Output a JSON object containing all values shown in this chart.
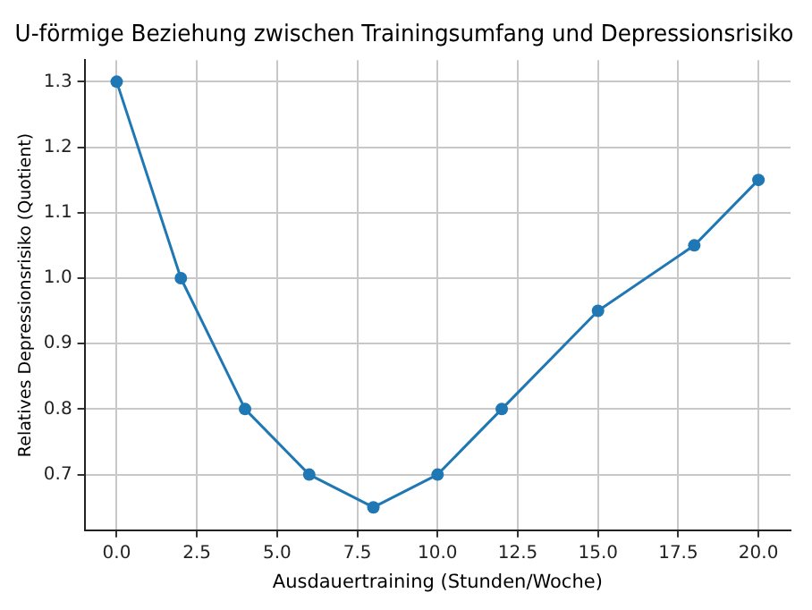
{
  "chart_data": {
    "type": "line",
    "title": "U-förmige Beziehung zwischen Trainingsumfang und Depressionsrisiko",
    "xlabel": "Ausdauertraining (Stunden/Woche)",
    "ylabel": "Relatives Depressionsrisiko (Quotient)",
    "x": [
      0,
      2,
      4,
      6,
      8,
      10,
      12,
      15,
      18,
      20
    ],
    "series": [
      {
        "color": "#1f77b4",
        "values": [
          1.3,
          1.0,
          0.8,
          0.7,
          0.65,
          0.7,
          0.8,
          0.95,
          1.05,
          1.15
        ]
      }
    ],
    "xlim": [
      -1,
      21
    ],
    "xticks": [
      {
        "value": 0,
        "label": "0.0"
      },
      {
        "value": 2.5,
        "label": "2.5"
      },
      {
        "value": 5,
        "label": "5.0"
      },
      {
        "value": 7.5,
        "label": "7.5"
      },
      {
        "value": 10,
        "label": "10.0"
      },
      {
        "value": 12.5,
        "label": "12.5"
      },
      {
        "value": 15,
        "label": "15.0"
      },
      {
        "value": 17.5,
        "label": "17.5"
      },
      {
        "value": 20,
        "label": "20.0"
      }
    ],
    "ylim": [
      0.615,
      1.333
    ],
    "yticks": [
      {
        "value": 0.7,
        "label": "0.7"
      },
      {
        "value": 0.8,
        "label": "0.8"
      },
      {
        "value": 0.9,
        "label": "0.9"
      },
      {
        "value": 1.0,
        "label": "1.0"
      },
      {
        "value": 1.1,
        "label": "1.1"
      },
      {
        "value": 1.2,
        "label": "1.2"
      },
      {
        "value": 1.3,
        "label": "1.3"
      }
    ],
    "grid": true,
    "marker": "circle",
    "line_style": "solid",
    "legend": false
  }
}
